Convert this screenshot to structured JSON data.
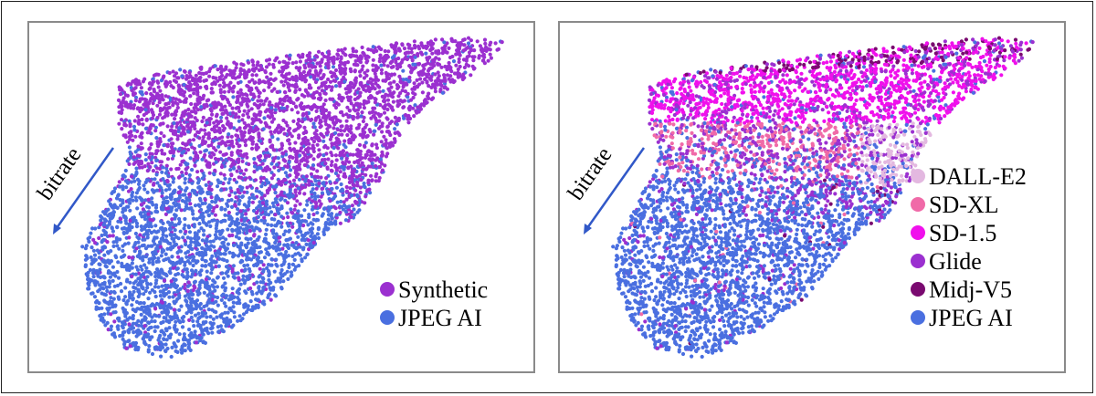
{
  "chart_data": [
    {
      "type": "scatter",
      "title": "",
      "xlabel": "",
      "ylabel": "",
      "grid": false,
      "legend_position": "bottom-right",
      "annotation": "bitrate",
      "series": [
        {
          "name": "Synthetic",
          "color": "#9b30d0"
        },
        {
          "name": "JPEG AI",
          "color": "#4a6fe0"
        }
      ]
    },
    {
      "type": "scatter",
      "title": "",
      "xlabel": "",
      "ylabel": "",
      "grid": false,
      "legend_position": "right",
      "annotation": "bitrate",
      "series": [
        {
          "name": "DALL-E2",
          "color": "#e3b8e0"
        },
        {
          "name": "SD-XL",
          "color": "#f06aa8"
        },
        {
          "name": "SD-1.5",
          "color": "#f010ec"
        },
        {
          "name": "Glide",
          "color": "#9b30d0"
        },
        {
          "name": "Midj-V5",
          "color": "#7a0a70"
        },
        {
          "name": "JPEG AI",
          "color": "#4a6fe0"
        }
      ]
    }
  ]
}
